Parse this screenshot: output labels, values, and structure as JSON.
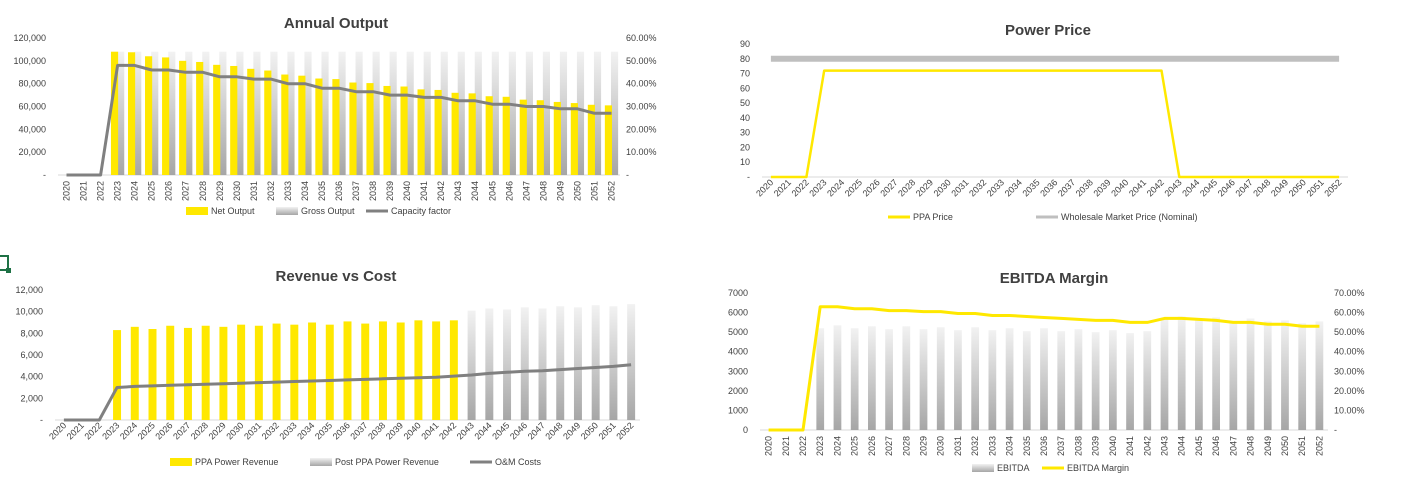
{
  "colors": {
    "yellow": "#ffe800",
    "gray_bar": "#d9d9d9",
    "gray_line": "#808080",
    "axis": "#d9d9d9",
    "text": "#404040"
  },
  "chart_data": [
    {
      "id": "annual-output",
      "type": "bar",
      "title": "Annual Output",
      "categories": [
        "2020",
        "2021",
        "2022",
        "2023",
        "2024",
        "2025",
        "2026",
        "2027",
        "2028",
        "2029",
        "2030",
        "2031",
        "2032",
        "2033",
        "2034",
        "2035",
        "2036",
        "2037",
        "2038",
        "2039",
        "2040",
        "2041",
        "2042",
        "2043",
        "2044",
        "2045",
        "2046",
        "2047",
        "2048",
        "2049",
        "2050",
        "2051",
        "2052"
      ],
      "series": [
        {
          "name": "Net Output",
          "kind": "bar",
          "axis": "left",
          "color": "#ffe800",
          "values": [
            0,
            0,
            0,
            108000,
            107500,
            104000,
            103000,
            100000,
            99000,
            96500,
            95500,
            93000,
            91500,
            88000,
            87000,
            84500,
            84000,
            81000,
            80500,
            78000,
            77500,
            75000,
            74500,
            72000,
            71500,
            69000,
            68500,
            66000,
            65500,
            64000,
            63000,
            61500,
            61000
          ]
        },
        {
          "name": "Gross Output",
          "kind": "bar",
          "axis": "left",
          "color": "#d9d9d9",
          "values": [
            0,
            0,
            0,
            108000,
            108000,
            108000,
            108000,
            108000,
            108000,
            108000,
            108000,
            108000,
            108000,
            108000,
            108000,
            108000,
            108000,
            108000,
            108000,
            108000,
            108000,
            108000,
            108000,
            108000,
            108000,
            108000,
            108000,
            108000,
            108000,
            108000,
            108000,
            108000,
            108000
          ]
        },
        {
          "name": "Capacity factor",
          "kind": "line",
          "axis": "right",
          "color": "#808080",
          "values": [
            0,
            0,
            0,
            0.48,
            0.48,
            0.46,
            0.46,
            0.45,
            0.45,
            0.43,
            0.43,
            0.42,
            0.42,
            0.4,
            0.4,
            0.38,
            0.38,
            0.365,
            0.365,
            0.35,
            0.35,
            0.34,
            0.34,
            0.325,
            0.325,
            0.31,
            0.31,
            0.3,
            0.3,
            0.29,
            0.29,
            0.27,
            0.27
          ]
        }
      ],
      "y_left": {
        "min": 0,
        "max": 120000,
        "ticks": [
          "-",
          "20,000",
          "40,000",
          "60,000",
          "80,000",
          "100,000",
          "120,000"
        ]
      },
      "y_right": {
        "min": 0,
        "max": 0.6,
        "ticks": [
          "-",
          "10.00%",
          "20.00%",
          "30.00%",
          "40.00%",
          "50.00%",
          "60.00%"
        ]
      },
      "legend_position": "bottom"
    },
    {
      "id": "power-price",
      "type": "line",
      "title": "Power Price",
      "categories": [
        "2020",
        "2021",
        "2022",
        "2023",
        "2024",
        "2025",
        "2026",
        "2027",
        "2028",
        "2029",
        "2030",
        "2031",
        "2032",
        "2033",
        "2034",
        "2035",
        "2036",
        "2037",
        "2038",
        "2039",
        "2040",
        "2041",
        "2042",
        "2043",
        "2044",
        "2045",
        "2046",
        "2047",
        "2048",
        "2049",
        "2050",
        "2051",
        "2052"
      ],
      "series": [
        {
          "name": "PPA Price",
          "kind": "line",
          "axis": "left",
          "color": "#ffe800",
          "values": [
            0,
            0,
            0,
            72,
            72,
            72,
            72,
            72,
            72,
            72,
            72,
            72,
            72,
            72,
            72,
            72,
            72,
            72,
            72,
            72,
            72,
            72,
            72,
            0,
            0,
            0,
            0,
            0,
            0,
            0,
            0,
            0,
            0
          ]
        },
        {
          "name": "Wholesale Market Price (Nominal)",
          "kind": "line",
          "axis": "left",
          "color": "#bfbfbf",
          "values": [
            80,
            80,
            80,
            80,
            80,
            80,
            80,
            80,
            80,
            80,
            80,
            80,
            80,
            80,
            80,
            80,
            80,
            80,
            80,
            80,
            80,
            80,
            80,
            80,
            80,
            80,
            80,
            80,
            80,
            80,
            80,
            80,
            80
          ]
        }
      ],
      "y_left": {
        "min": 0,
        "max": 90,
        "ticks": [
          "-",
          "10",
          "20",
          "30",
          "40",
          "50",
          "60",
          "70",
          "80",
          "90"
        ]
      },
      "legend_position": "bottom"
    },
    {
      "id": "revenue-vs-cost",
      "type": "bar",
      "title": "Revenue vs Cost",
      "categories": [
        "2020",
        "2021",
        "2022",
        "2023",
        "2024",
        "2025",
        "2026",
        "2027",
        "2028",
        "2029",
        "2030",
        "2031",
        "2032",
        "2033",
        "2034",
        "2035",
        "2036",
        "2037",
        "2038",
        "2039",
        "2040",
        "2041",
        "2042",
        "2043",
        "2044",
        "2045",
        "2046",
        "2047",
        "2048",
        "2049",
        "2050",
        "2051",
        "2052"
      ],
      "series": [
        {
          "name": "PPA Power Revenue",
          "kind": "bar",
          "axis": "left",
          "color": "#ffe800",
          "values": [
            0,
            0,
            0,
            8300,
            8600,
            8400,
            8700,
            8500,
            8700,
            8600,
            8800,
            8700,
            8900,
            8800,
            9000,
            8800,
            9100,
            8900,
            9100,
            9000,
            9200,
            9100,
            9200,
            0,
            0,
            0,
            0,
            0,
            0,
            0,
            0,
            0,
            0
          ]
        },
        {
          "name": "Post PPA Power Revenue",
          "kind": "bar",
          "axis": "left",
          "color": "#d9d9d9",
          "values": [
            0,
            0,
            0,
            0,
            0,
            0,
            0,
            0,
            0,
            0,
            0,
            0,
            0,
            0,
            0,
            0,
            0,
            0,
            0,
            0,
            0,
            0,
            0,
            10100,
            10300,
            10200,
            10400,
            10300,
            10500,
            10400,
            10600,
            10500,
            10700
          ]
        },
        {
          "name": "O&M Costs",
          "kind": "line",
          "axis": "left",
          "color": "#808080",
          "values": [
            0,
            0,
            0,
            3000,
            3100,
            3150,
            3200,
            3250,
            3300,
            3350,
            3400,
            3450,
            3500,
            3550,
            3600,
            3650,
            3700,
            3750,
            3800,
            3850,
            3900,
            3950,
            4050,
            4150,
            4300,
            4400,
            4500,
            4550,
            4650,
            4750,
            4850,
            4950,
            5100
          ]
        }
      ],
      "y_left": {
        "min": 0,
        "max": 12000,
        "ticks": [
          "-",
          "2,000",
          "4,000",
          "6,000",
          "8,000",
          "10,000",
          "12,000"
        ]
      },
      "legend_position": "bottom"
    },
    {
      "id": "ebitda-margin",
      "type": "bar",
      "title": "EBITDA Margin",
      "categories": [
        "2020",
        "2021",
        "2022",
        "2023",
        "2024",
        "2025",
        "2026",
        "2027",
        "2028",
        "2029",
        "2030",
        "2031",
        "2032",
        "2033",
        "2034",
        "2035",
        "2036",
        "2037",
        "2038",
        "2039",
        "2040",
        "2041",
        "2042",
        "2043",
        "2044",
        "2045",
        "2046",
        "2047",
        "2048",
        "2049",
        "2050",
        "2051",
        "2052"
      ],
      "series": [
        {
          "name": "EBITDA",
          "kind": "bar",
          "axis": "left",
          "color": "#d9d9d9",
          "values": [
            0,
            0,
            0,
            5200,
            5350,
            5200,
            5300,
            5150,
            5300,
            5150,
            5250,
            5100,
            5250,
            5100,
            5200,
            5050,
            5200,
            5050,
            5150,
            5000,
            5100,
            4950,
            5050,
            5700,
            5800,
            5600,
            5750,
            5500,
            5700,
            5550,
            5600,
            5450,
            5550
          ]
        },
        {
          "name": "EBITDA Margin",
          "kind": "line",
          "axis": "right",
          "color": "#ffe800",
          "values": [
            0,
            0,
            0,
            0.63,
            0.63,
            0.62,
            0.62,
            0.61,
            0.61,
            0.605,
            0.605,
            0.595,
            0.595,
            0.585,
            0.585,
            0.58,
            0.575,
            0.57,
            0.565,
            0.56,
            0.56,
            0.55,
            0.55,
            0.57,
            0.57,
            0.565,
            0.56,
            0.55,
            0.55,
            0.54,
            0.54,
            0.53,
            0.53
          ]
        }
      ],
      "y_left": {
        "min": 0,
        "max": 7000,
        "ticks": [
          "0",
          "1000",
          "2000",
          "3000",
          "4000",
          "5000",
          "6000",
          "7000"
        ]
      },
      "y_right": {
        "min": 0,
        "max": 0.7,
        "ticks": [
          "-",
          "10.00%",
          "20.00%",
          "30.00%",
          "40.00%",
          "50.00%",
          "60.00%",
          "70.00%"
        ]
      },
      "legend_position": "bottom"
    }
  ]
}
